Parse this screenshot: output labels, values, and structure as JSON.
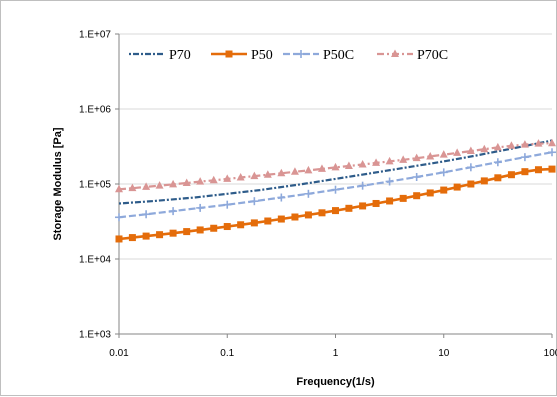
{
  "chart_data": {
    "type": "line",
    "xlabel": "Frequency(1/s)",
    "ylabel": "Storage Modulus [Pa]",
    "xscale": "log",
    "yscale": "log",
    "xlim": [
      0.01,
      100
    ],
    "ylim": [
      1000,
      10000000
    ],
    "x_ticks": [
      "0.01",
      "0.1",
      "1",
      "10",
      "100"
    ],
    "y_ticks": [
      "1.E+03",
      "1.E+04",
      "1.E+05",
      "1.E+06",
      "1.E+07"
    ],
    "grid": "horizontal",
    "legend_position": "top-left",
    "series": [
      {
        "name": "P70",
        "color": "#2E5C8A",
        "style": "dotted-dash",
        "marker": "none",
        "x": [
          0.01,
          0.02,
          0.05,
          0.1,
          0.2,
          0.5,
          1,
          2,
          5,
          10,
          20,
          50,
          100
        ],
        "y": [
          55000,
          59000,
          66000,
          74000,
          83000,
          100000,
          117000,
          137000,
          170000,
          200000,
          240000,
          310000,
          380000
        ]
      },
      {
        "name": "P50",
        "color": "#E46C0A",
        "style": "solid",
        "marker": "square",
        "x": [
          0.01,
          0.0133,
          0.0178,
          0.0237,
          0.0316,
          0.0422,
          0.0562,
          0.075,
          0.1,
          0.133,
          0.178,
          0.237,
          0.316,
          0.422,
          0.562,
          0.75,
          1,
          1.33,
          1.78,
          2.37,
          3.16,
          4.22,
          5.62,
          7.5,
          10,
          13.3,
          17.8,
          23.7,
          31.6,
          42.2,
          56.2,
          75,
          100
        ],
        "y": [
          18500,
          19300,
          20200,
          21100,
          22100,
          23200,
          24400,
          25700,
          27100,
          28600,
          30300,
          32100,
          34100,
          36300,
          38700,
          41300,
          44200,
          47400,
          51000,
          55000,
          59400,
          64300,
          69800,
          76000,
          83000,
          91000,
          100000,
          110000,
          121000,
          133000,
          146000,
          155000,
          158000
        ]
      },
      {
        "name": "P50C",
        "color": "#8EA9DB",
        "style": "dashed",
        "marker": "plus",
        "x": [
          0.01,
          0.0178,
          0.0316,
          0.0562,
          0.1,
          0.178,
          0.316,
          0.562,
          1,
          1.78,
          3.16,
          5.62,
          10,
          17.8,
          31.6,
          56.2,
          100
        ],
        "y": [
          36000,
          39500,
          43500,
          48000,
          53000,
          59000,
          66000,
          74000,
          84000,
          95000,
          108000,
          124000,
          143000,
          167000,
          195000,
          228000,
          265000
        ]
      },
      {
        "name": "P70C",
        "color": "#D99594",
        "style": "dash-dot",
        "marker": "triangle",
        "x": [
          0.01,
          0.0133,
          0.0178,
          0.0237,
          0.0316,
          0.0422,
          0.0562,
          0.075,
          0.1,
          0.133,
          0.178,
          0.237,
          0.316,
          0.422,
          0.562,
          0.75,
          1,
          1.33,
          1.78,
          2.37,
          3.16,
          4.22,
          5.62,
          7.5,
          10,
          13.3,
          17.8,
          23.7,
          31.6,
          42.2,
          56.2,
          75,
          100
        ],
        "y": [
          85000,
          88000,
          91500,
          95000,
          99000,
          103000,
          107500,
          112000,
          117000,
          122000,
          127500,
          133000,
          139000,
          145500,
          152000,
          159000,
          166500,
          174000,
          182000,
          191000,
          200000,
          210000,
          221000,
          233000,
          246000,
          260000,
          275000,
          291000,
          308000,
          323000,
          335000,
          345000,
          350000
        ]
      }
    ]
  }
}
